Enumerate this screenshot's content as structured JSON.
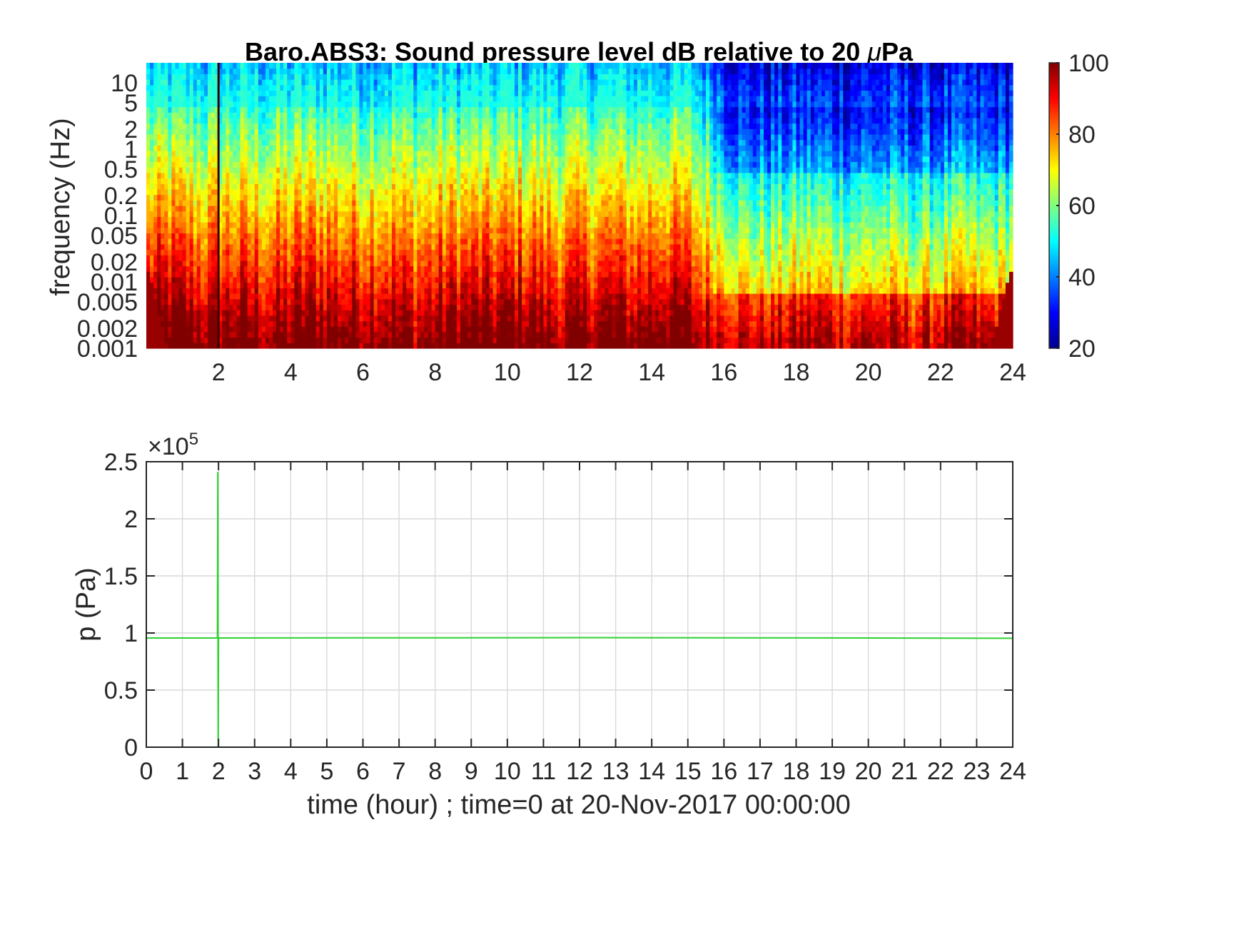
{
  "chart_data": [
    {
      "type": "heatmap",
      "title_prefix": "Baro.ABS3: Sound pressure level dB relative to 20 ",
      "title_mu": "μ",
      "title_suffix": "Pa",
      "xlim": [
        0,
        24
      ],
      "x_ticks": [
        "2",
        "4",
        "6",
        "8",
        "10",
        "12",
        "14",
        "16",
        "18",
        "20",
        "22",
        "24"
      ],
      "x_tick_values": [
        2,
        4,
        6,
        8,
        10,
        12,
        14,
        16,
        18,
        20,
        22,
        24
      ],
      "ylabel": "frequency (Hz)",
      "y_scale": "log",
      "ylim": [
        0.001,
        20
      ],
      "y_ticks": [
        "10",
        "5",
        "2",
        "1",
        "0.5",
        "0.2",
        "0.1",
        "0.05",
        "0.02",
        "0.01",
        "0.005",
        "0.002",
        "0.001"
      ],
      "y_tick_values": [
        10,
        5,
        2,
        1,
        0.5,
        0.2,
        0.1,
        0.05,
        0.02,
        0.01,
        0.005,
        0.002,
        0.001
      ],
      "colormap": "jet",
      "colorbar": {
        "range": [
          20,
          100
        ],
        "ticks": [
          "100",
          "80",
          "60",
          "40",
          "20"
        ],
        "tick_values": [
          100,
          80,
          60,
          40,
          20
        ]
      },
      "features": {
        "transient_hour": 2.0,
        "high_activity_hours": [
          0,
          15
        ],
        "quiet_hours": [
          15,
          24
        ]
      }
    },
    {
      "type": "line",
      "xlabel": "time (hour) ; time=0 at 20-Nov-2017 00:00:00",
      "ylabel": "p (Pa)",
      "xlim": [
        0,
        24
      ],
      "ylim": [
        0,
        250000
      ],
      "x_ticks": [
        "0",
        "1",
        "2",
        "3",
        "4",
        "5",
        "6",
        "7",
        "8",
        "9",
        "10",
        "11",
        "12",
        "13",
        "14",
        "15",
        "16",
        "17",
        "18",
        "19",
        "20",
        "21",
        "22",
        "23",
        "24"
      ],
      "y_ticks": [
        "0",
        "0.5",
        "1",
        "1.5",
        "2",
        "2.5"
      ],
      "y_tick_values": [
        0,
        50000,
        100000,
        150000,
        200000,
        250000
      ],
      "y_exponent_base": "×10",
      "y_exponent_power": "5",
      "grid": true,
      "series": [
        {
          "color": "#2fd12f",
          "points": [
            [
              0,
              95600
            ],
            [
              1.97,
              95600
            ],
            [
              1.98,
              241000
            ],
            [
              1.99,
              0
            ],
            [
              2.0,
              95600
            ],
            [
              4,
              95700
            ],
            [
              8,
              95800
            ],
            [
              12,
              95900
            ],
            [
              16,
              95800
            ],
            [
              20,
              95600
            ],
            [
              24,
              95400
            ]
          ]
        }
      ]
    }
  ]
}
